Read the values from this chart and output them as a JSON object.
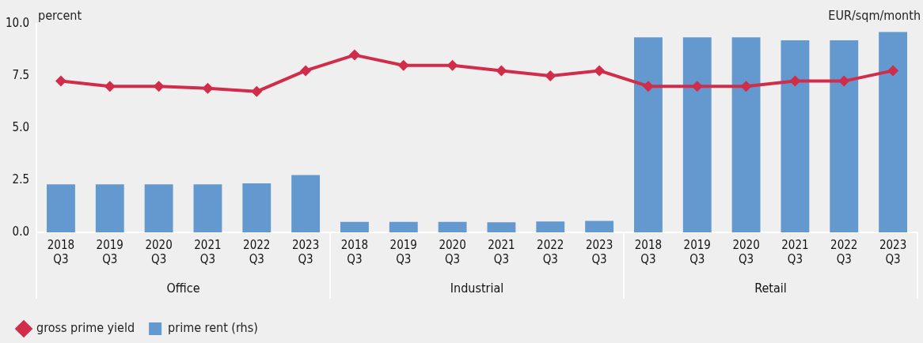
{
  "chart_data": {
    "type": "bar",
    "ylabel": "percent",
    "y2label": "EUR/sqm/month",
    "categories": [
      "2018 Q3",
      "2019 Q3",
      "2020 Q3",
      "2021 Q3",
      "2022 Q3",
      "2023 Q3",
      "2018 Q3",
      "2019 Q3",
      "2020 Q3",
      "2021 Q3",
      "2022 Q3",
      "2023 Q3",
      "2018 Q3",
      "2019 Q3",
      "2020 Q3",
      "2021 Q3",
      "2022 Q3",
      "2023 Q3"
    ],
    "series": [
      {
        "name": "gross prime yield",
        "type": "line",
        "color": "#d12d4a",
        "marker": "diamond",
        "values": [
          7.25,
          7.0,
          7.0,
          6.9,
          6.75,
          7.75,
          8.5,
          8.0,
          8.0,
          7.75,
          7.5,
          7.75,
          7.0,
          7.0,
          7.0,
          7.25,
          7.25,
          7.75
        ]
      },
      {
        "name": "prime rent (rhs)",
        "type": "bar",
        "color": "#6399cf",
        "values": [
          2.3,
          2.3,
          2.3,
          2.3,
          2.35,
          2.75,
          0.5,
          0.5,
          0.5,
          0.48,
          0.52,
          0.55,
          9.35,
          9.35,
          9.35,
          9.2,
          9.2,
          9.6
        ]
      }
    ],
    "ylim": [
      0,
      10
    ],
    "yticks": [
      {
        "value": 0,
        "label": "0.0"
      },
      {
        "value": 2.5,
        "label": "2.5"
      },
      {
        "value": 5,
        "label": "5.0"
      },
      {
        "value": 7.5,
        "label": "7.5"
      },
      {
        "value": 10,
        "label": "10.0"
      }
    ],
    "legend": "bottom left",
    "annotations": [
      "Office",
      "Industrial",
      "Retail"
    ]
  }
}
